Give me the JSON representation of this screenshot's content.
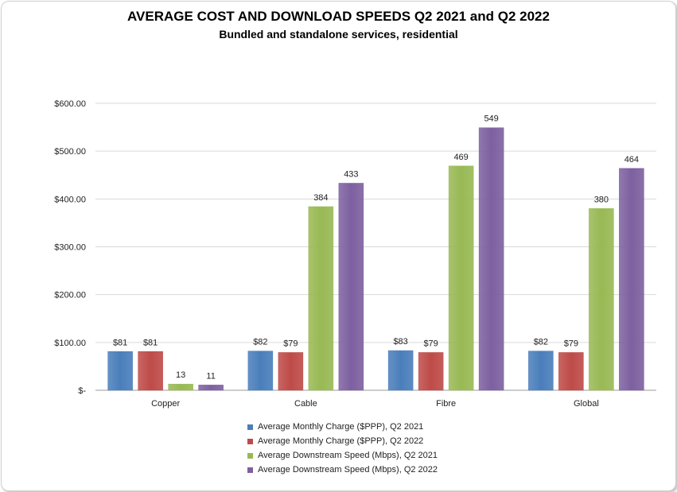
{
  "chart_data": {
    "type": "bar",
    "title": "AVERAGE COST AND DOWNLOAD SPEEDS Q2 2021 and Q2 2022",
    "subtitle": "Bundled and standalone services, residential",
    "categories": [
      "Copper",
      "Cable",
      "Fibre",
      "Global"
    ],
    "series": [
      {
        "name": "Average Monthly Charge ($PPP), Q2 2021",
        "values": [
          81,
          82,
          83,
          82
        ],
        "labels": [
          "$81",
          "$82",
          "$83",
          "$82"
        ],
        "color": "#4a7ebb"
      },
      {
        "name": "Average Monthly Charge ($PPP), Q2 2022",
        "values": [
          81,
          79,
          79,
          79
        ],
        "labels": [
          "$81",
          "$79",
          "$79",
          "$79"
        ],
        "color": "#be4b48"
      },
      {
        "name": "Average Downstream Speed (Mbps), Q2 2021",
        "values": [
          13,
          384,
          469,
          380
        ],
        "labels": [
          "13",
          "384",
          "469",
          "380"
        ],
        "color": "#98b954"
      },
      {
        "name": "Average Downstream Speed (Mbps), Q2 2022",
        "values": [
          11,
          433,
          549,
          464
        ],
        "labels": [
          "11",
          "433",
          "549",
          "464"
        ],
        "color": "#7d60a0"
      }
    ],
    "ylim": [
      0,
      600
    ],
    "yticks": [
      {
        "value": 0,
        "label": "$-"
      },
      {
        "value": 100,
        "label": "$100.00"
      },
      {
        "value": 200,
        "label": "$200.00"
      },
      {
        "value": 300,
        "label": "$300.00"
      },
      {
        "value": 400,
        "label": "$400.00"
      },
      {
        "value": 500,
        "label": "$500.00"
      },
      {
        "value": 600,
        "label": "$600.00"
      }
    ],
    "grid": true,
    "legend_position": "bottom"
  }
}
